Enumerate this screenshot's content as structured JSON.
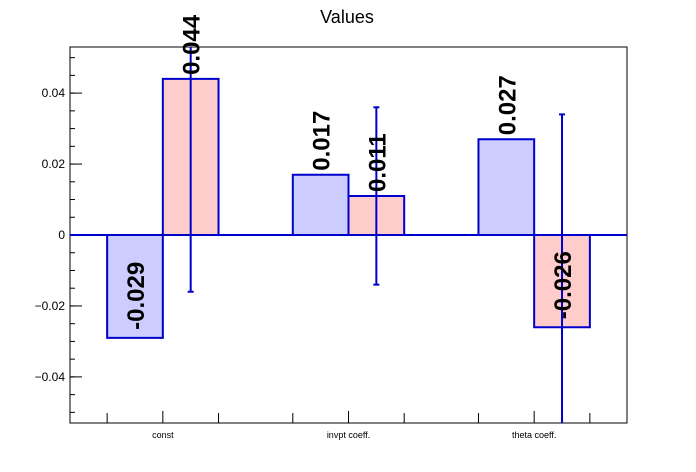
{
  "chart_data": {
    "type": "bar",
    "title": "Values",
    "xlabel": "",
    "ylabel": "",
    "categories": [
      "const",
      "invpt coeff.",
      "theta coeff."
    ],
    "ylim": [
      -0.053,
      0.053
    ],
    "yticks": [
      -0.04,
      -0.02,
      0,
      0.02,
      0.04
    ],
    "ytick_labels": [
      "−0.04",
      "−0.02",
      "0",
      "0.02",
      "0.04"
    ],
    "grid": false,
    "series": [
      {
        "values": [
          -0.029,
          0.017,
          0.027
        ],
        "labels": [
          "-0.029",
          "0.017",
          "0.027"
        ],
        "fill": "#ccccff",
        "stroke": "#0000cc",
        "errors": [
          0,
          0,
          0
        ]
      },
      {
        "values": [
          0.044,
          0.011,
          -0.026
        ],
        "labels": [
          "0.044",
          "0.011",
          "-0.026"
        ],
        "fill": "#ffcccc",
        "stroke": "#0000cc",
        "errors": [
          0.06,
          0.025,
          0.06
        ]
      }
    ]
  }
}
